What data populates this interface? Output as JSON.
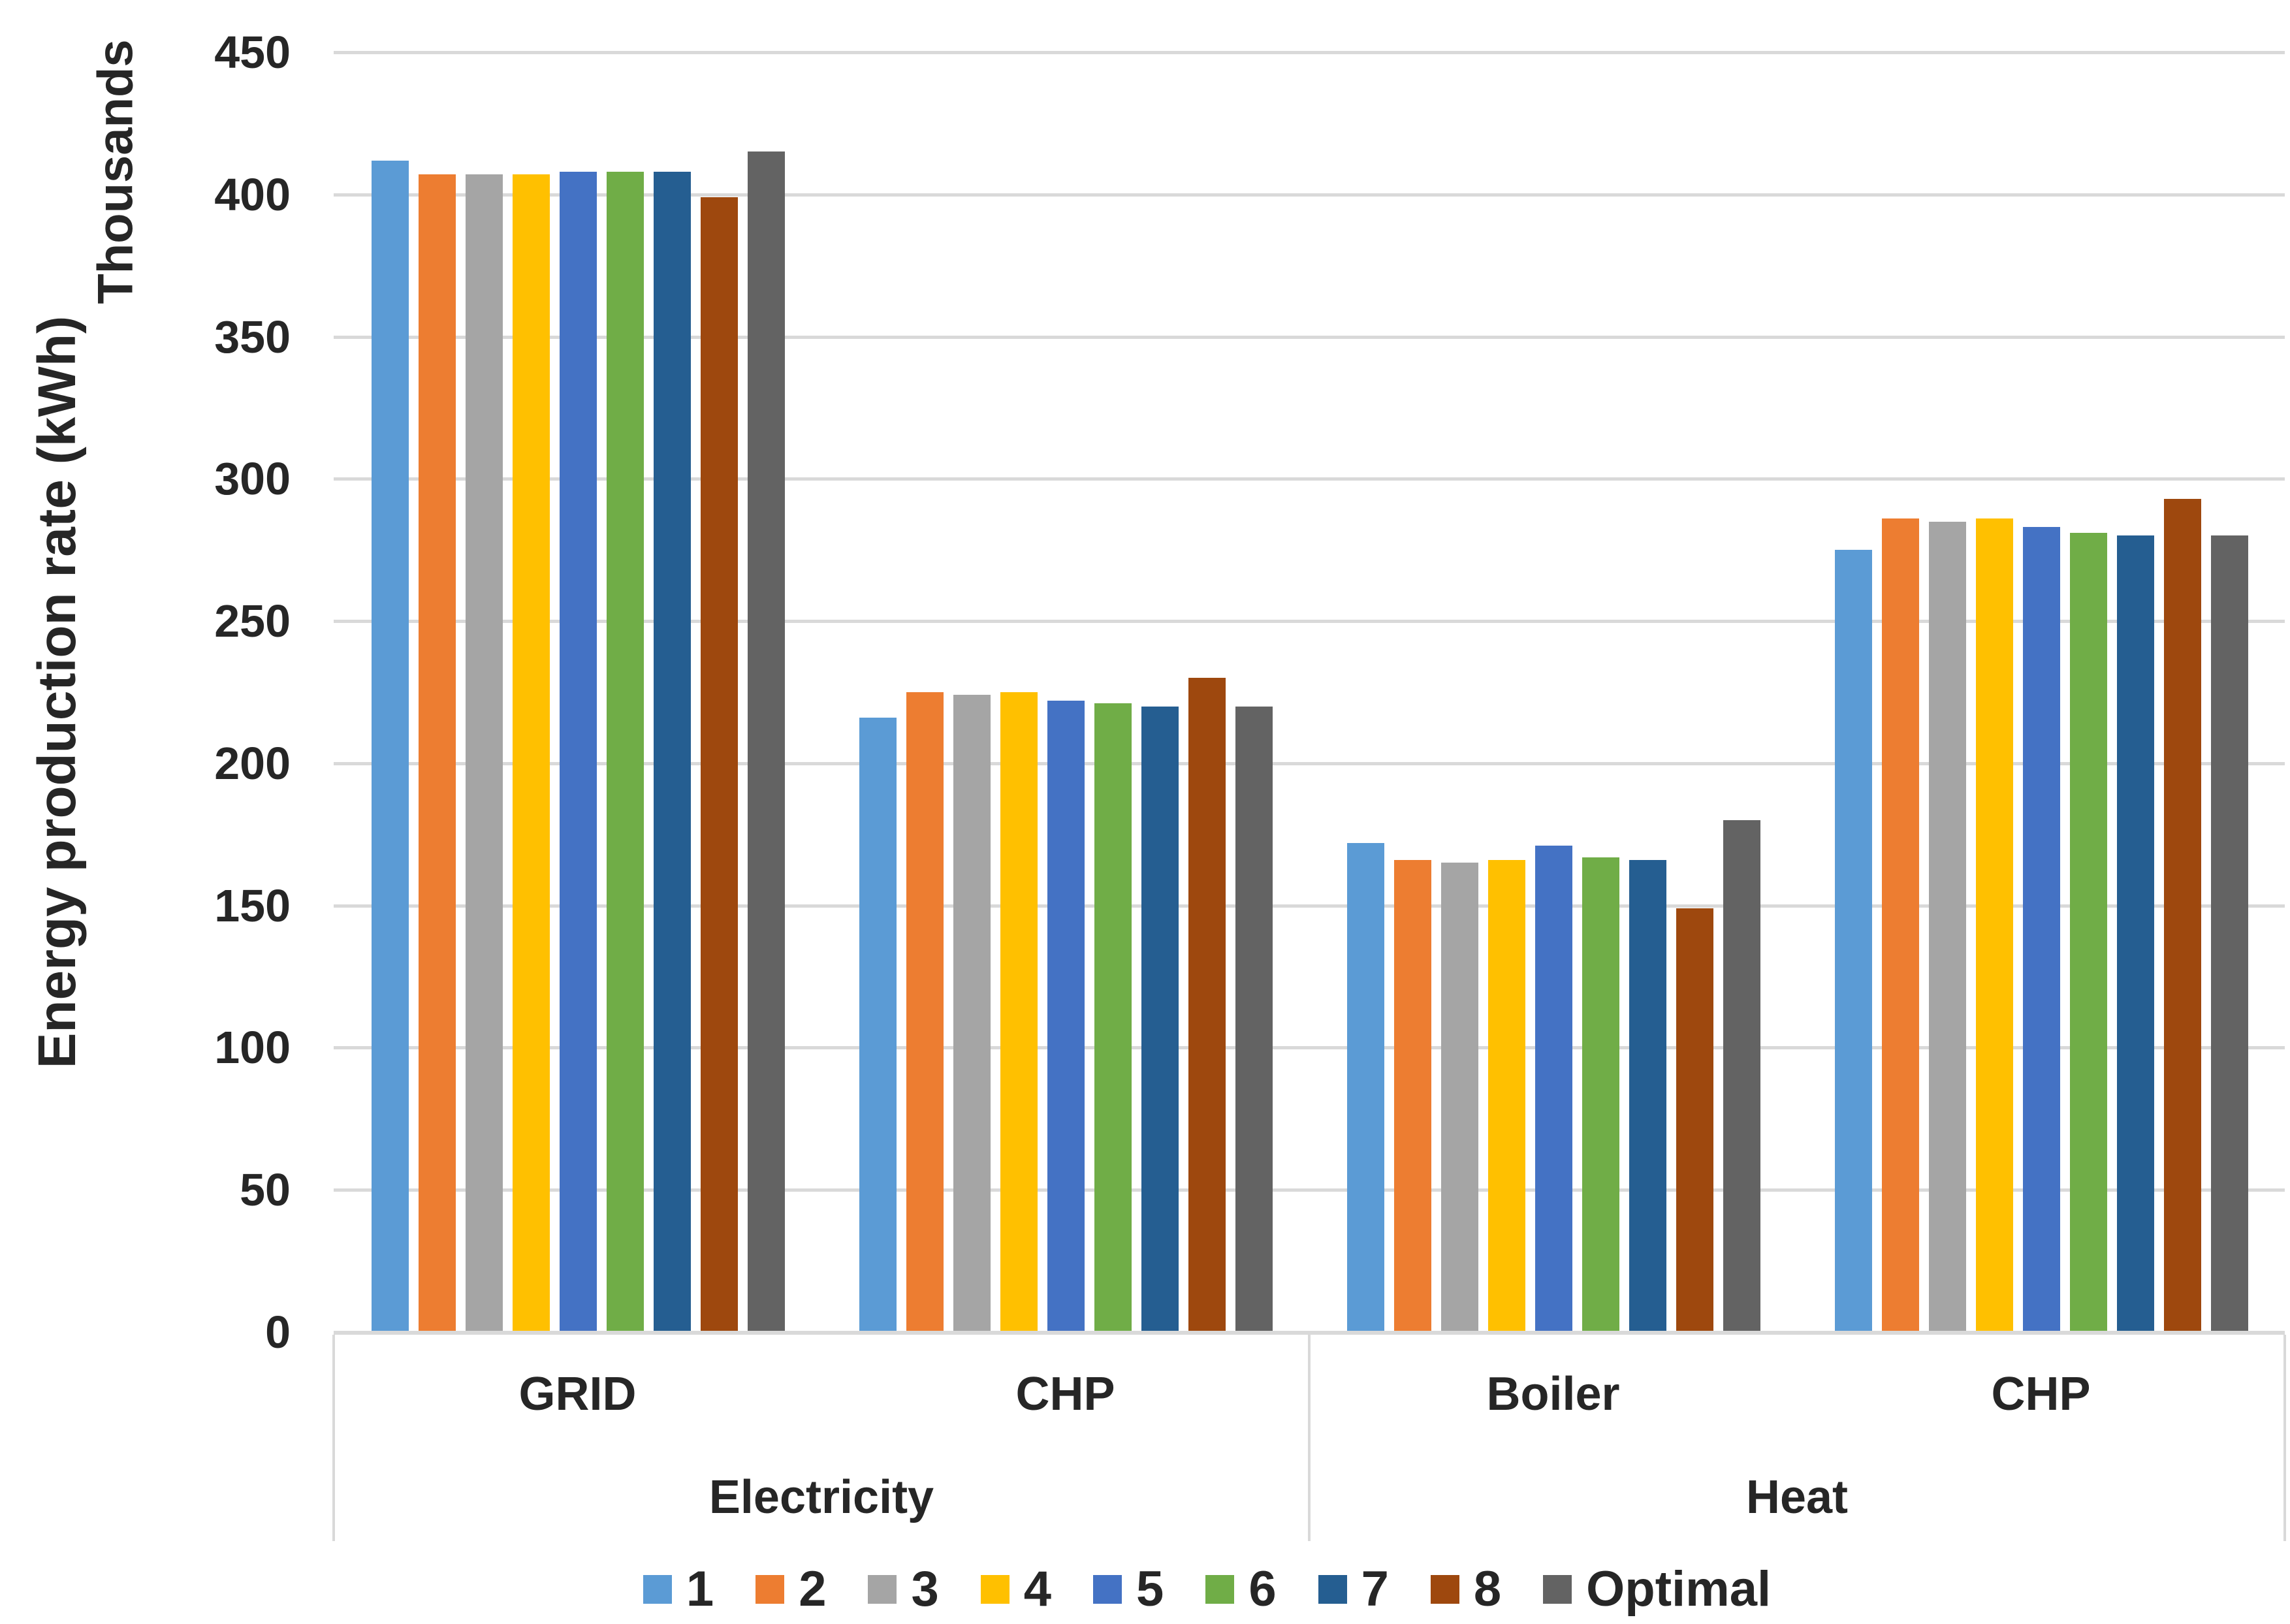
{
  "chart_data": {
    "type": "bar",
    "title": "",
    "ylabel": "Energy production rate (kWh)",
    "ylabel_secondary": "Thousands",
    "ylim": [
      0,
      450
    ],
    "yticks": [
      450,
      400,
      350,
      300,
      250,
      200,
      150,
      100,
      50,
      0
    ],
    "grid": true,
    "legend_position": "bottom",
    "categories": [
      "GRID",
      "CHP",
      "Boiler",
      "CHP"
    ],
    "category_groups": [
      {
        "label": "Electricity",
        "span": 2
      },
      {
        "label": "Heat",
        "span": 2
      }
    ],
    "series": [
      {
        "name": "1",
        "color": "#5B9BD5",
        "values": [
          412,
          216,
          172,
          275
        ]
      },
      {
        "name": "2",
        "color": "#ED7D31",
        "values": [
          407,
          225,
          166,
          286
        ]
      },
      {
        "name": "3",
        "color": "#A5A5A5",
        "values": [
          407,
          224,
          165,
          285
        ]
      },
      {
        "name": "4",
        "color": "#FFC000",
        "values": [
          407,
          225,
          166,
          286
        ]
      },
      {
        "name": "5",
        "color": "#4472C4",
        "values": [
          408,
          222,
          171,
          283
        ]
      },
      {
        "name": "6",
        "color": "#70AD47",
        "values": [
          408,
          221,
          167,
          281
        ]
      },
      {
        "name": "7",
        "color": "#255E91",
        "values": [
          408,
          220,
          166,
          280
        ]
      },
      {
        "name": "8",
        "color": "#9E480E",
        "values": [
          399,
          230,
          149,
          293
        ]
      },
      {
        "name": "Optimal",
        "color": "#636363",
        "values": [
          415,
          220,
          180,
          280
        ]
      }
    ]
  },
  "colors": {
    "grid_line": "#D9D9D9",
    "text": "#262626",
    "background": "#FFFFFF"
  }
}
